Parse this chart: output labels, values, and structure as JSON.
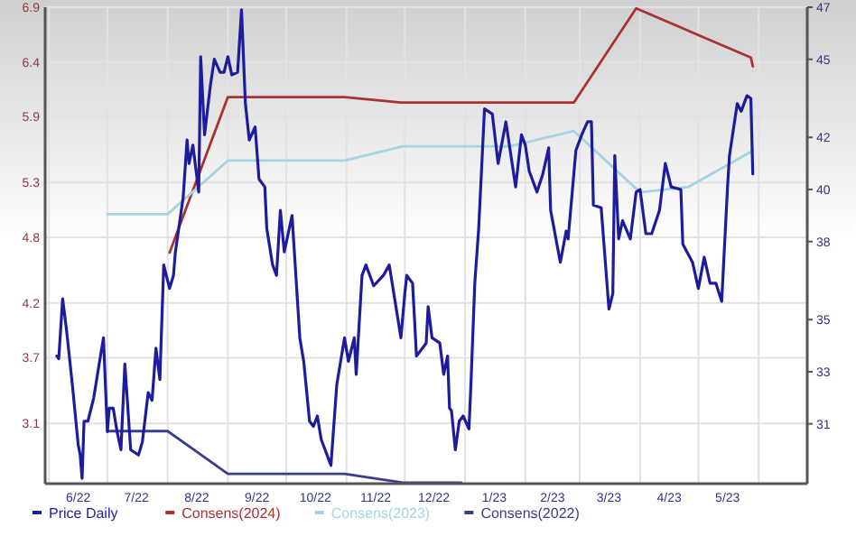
{
  "chart_data": {
    "type": "line",
    "xlim": [
      "2022-05-30",
      "2023-06-26"
    ],
    "xticks": [
      {
        "value": "2022-06-01",
        "label": null
      },
      {
        "value": "2022-06-16",
        "label": "6/22"
      },
      {
        "value": "2022-07-01",
        "label": null
      },
      {
        "value": "2022-07-16",
        "label": "7/22"
      },
      {
        "value": "2022-08-01",
        "label": null
      },
      {
        "value": "2022-08-16",
        "label": "8/22"
      },
      {
        "value": "2022-09-01",
        "label": null
      },
      {
        "value": "2022-09-16",
        "label": "9/22"
      },
      {
        "value": "2022-10-01",
        "label": null
      },
      {
        "value": "2022-10-16",
        "label": "10/22"
      },
      {
        "value": "2022-11-01",
        "label": null
      },
      {
        "value": "2022-11-16",
        "label": "11/22"
      },
      {
        "value": "2022-12-01",
        "label": null
      },
      {
        "value": "2022-12-16",
        "label": "12/22"
      },
      {
        "value": "2023-01-01",
        "label": null
      },
      {
        "value": "2023-01-16",
        "label": "1/23"
      },
      {
        "value": "2023-02-01",
        "label": null
      },
      {
        "value": "2023-02-15",
        "label": "2/23"
      },
      {
        "value": "2023-03-01",
        "label": null
      },
      {
        "value": "2023-03-16",
        "label": "3/23"
      },
      {
        "value": "2023-04-01",
        "label": null
      },
      {
        "value": "2023-04-16",
        "label": "4/23"
      },
      {
        "value": "2023-05-01",
        "label": null
      },
      {
        "value": "2023-05-16",
        "label": "5/23"
      },
      {
        "value": "2023-06-01",
        "label": null
      }
    ],
    "ylim": [
      2.55,
      6.9
    ],
    "yticks": [
      3.1,
      3.7,
      4.2,
      4.8,
      5.3,
      5.9,
      6.4,
      6.9
    ],
    "y2lim": [
      28.7,
      47
    ],
    "y2ticks": [
      31,
      33,
      35,
      38,
      40,
      42,
      45,
      47
    ],
    "grid": true,
    "legend": "bottom",
    "marker": "none",
    "line_style": "solid",
    "series": [
      {
        "name": "Price Daily",
        "color": "#1c1c9c",
        "axis": "y2",
        "x": [
          "2022-06-05",
          "2022-06-06",
          "2022-06-08",
          "2022-06-10",
          "2022-06-13",
          "2022-06-16",
          "2022-06-17",
          "2022-06-18",
          "2022-06-19",
          "2022-06-21",
          "2022-06-24",
          "2022-06-27",
          "2022-06-29",
          "2022-07-01",
          "2022-07-02",
          "2022-07-04",
          "2022-07-06",
          "2022-07-08",
          "2022-07-10",
          "2022-07-12",
          "2022-07-13",
          "2022-07-17",
          "2022-07-19",
          "2022-07-22",
          "2022-07-24",
          "2022-07-26",
          "2022-07-28",
          "2022-07-30",
          "2022-08-02",
          "2022-08-04",
          "2022-08-05",
          "2022-08-09",
          "2022-08-11",
          "2022-08-12",
          "2022-08-14",
          "2022-08-17",
          "2022-08-18",
          "2022-08-20",
          "2022-08-23",
          "2022-08-25",
          "2022-08-28",
          "2022-08-30",
          "2022-09-01",
          "2022-09-03",
          "2022-09-06",
          "2022-09-08",
          "2022-09-10",
          "2022-09-12",
          "2022-09-15",
          "2022-09-17",
          "2022-09-20",
          "2022-09-21",
          "2022-09-24",
          "2022-09-26",
          "2022-09-28",
          "2022-09-30",
          "2022-10-04",
          "2022-10-08",
          "2022-10-10",
          "2022-10-13",
          "2022-10-15",
          "2022-10-17",
          "2022-10-19",
          "2022-10-24",
          "2022-10-27",
          "2022-10-31",
          "2022-11-02",
          "2022-11-05",
          "2022-11-06",
          "2022-11-09",
          "2022-11-11",
          "2022-11-15",
          "2022-11-20",
          "2022-11-23",
          "2022-11-26",
          "2022-11-29",
          "2022-12-01",
          "2022-12-02",
          "2022-12-05",
          "2022-12-07",
          "2022-12-12",
          "2022-12-13",
          "2022-12-15",
          "2022-12-19",
          "2022-12-21",
          "2022-12-23",
          "2022-12-24",
          "2022-12-25",
          "2022-12-27",
          "2022-12-29",
          "2022-12-31",
          "2023-01-03",
          "2023-01-04",
          "2023-01-06",
          "2023-01-08",
          "2023-01-11",
          "2023-01-15",
          "2023-01-18",
          "2023-01-22",
          "2023-01-26",
          "2023-01-27",
          "2023-01-30",
          "2023-02-01",
          "2023-02-03",
          "2023-02-07",
          "2023-02-10",
          "2023-02-13",
          "2023-02-14",
          "2023-02-19",
          "2023-02-22",
          "2023-02-23",
          "2023-02-27",
          "2023-03-02",
          "2023-03-05",
          "2023-03-07",
          "2023-03-08",
          "2023-03-12",
          "2023-03-16",
          "2023-03-18",
          "2023-03-19",
          "2023-03-21",
          "2023-03-23",
          "2023-03-27",
          "2023-03-30",
          "2023-04-01",
          "2023-04-04",
          "2023-04-07",
          "2023-04-11",
          "2023-04-14",
          "2023-04-17",
          "2023-04-22",
          "2023-04-23",
          "2023-04-28",
          "2023-05-01",
          "2023-05-04",
          "2023-05-07",
          "2023-05-10",
          "2023-05-13",
          "2023-05-16",
          "2023-05-17",
          "2023-05-21",
          "2023-05-23",
          "2023-05-26",
          "2023-05-28",
          "2023-05-29"
        ],
        "values": [
          33.6,
          33.5,
          35.8,
          34.6,
          32.5,
          30.2,
          29.8,
          28.9,
          31.1,
          31.1,
          32.0,
          33.4,
          34.3,
          30.7,
          31.6,
          31.6,
          30.7,
          30.0,
          33.3,
          31.1,
          30.0,
          29.8,
          30.3,
          32.2,
          31.9,
          33.9,
          32.7,
          37.1,
          36.2,
          36.7,
          37.6,
          39.7,
          41.9,
          41.0,
          41.7,
          39.9,
          45.1,
          42.1,
          44.0,
          45.0,
          44.5,
          44.5,
          45.1,
          44.4,
          44.5,
          46.9,
          43.3,
          41.9,
          42.4,
          40.4,
          40.1,
          38.5,
          37.1,
          36.7,
          39.2,
          37.6,
          39.0,
          34.3,
          33.4,
          31.1,
          30.9,
          31.3,
          30.4,
          29.4,
          32.5,
          34.3,
          33.4,
          34.3,
          32.9,
          36.7,
          37.1,
          36.3,
          36.7,
          37.1,
          35.7,
          34.3,
          36.0,
          36.7,
          36.4,
          33.6,
          34.1,
          35.5,
          34.3,
          34.1,
          32.9,
          33.6,
          31.6,
          31.5,
          30.0,
          31.1,
          31.3,
          30.8,
          32.5,
          36.4,
          38.5,
          43.1,
          42.9,
          41.0,
          42.6,
          40.6,
          40.1,
          42.1,
          41.7,
          40.7,
          39.9,
          40.6,
          41.6,
          39.2,
          37.2,
          38.4,
          38.1,
          41.5,
          42.1,
          42.6,
          42.6,
          39.4,
          39.3,
          35.4,
          36.0,
          41.3,
          38.1,
          38.8,
          38.1,
          39.9,
          40.0,
          38.3,
          38.3,
          39.2,
          41.0,
          40.1,
          40.0,
          37.9,
          37.2,
          36.2,
          37.4,
          36.4,
          36.4,
          35.7,
          40.1,
          41.3,
          43.3,
          43.0,
          43.6,
          43.5,
          40.6
        ]
      },
      {
        "name": "Consens(2024)",
        "color": "#a83232",
        "x": [
          "2022-08-02",
          "2022-09-01",
          "2022-10-31",
          "2022-11-29",
          "2023-02-26",
          "2023-03-30",
          "2023-05-28",
          "2023-05-29"
        ],
        "values": [
          4.66,
          6.08,
          6.08,
          6.03,
          6.03,
          6.89,
          6.44,
          6.36
        ]
      },
      {
        "name": "Consens(2023)",
        "color": "#a6d3e4",
        "x": [
          "2022-07-01",
          "2022-08-01",
          "2022-09-01",
          "2022-10-31",
          "2022-11-30",
          "2023-01-24",
          "2023-02-26",
          "2023-04-01",
          "2023-04-26",
          "2023-05-29"
        ],
        "values": [
          5.01,
          5.01,
          5.5,
          5.5,
          5.63,
          5.63,
          5.77,
          5.21,
          5.26,
          5.59
        ]
      },
      {
        "name": "Consens(2022)",
        "color": "#3c3c8c",
        "x": [
          "2022-07-01",
          "2022-08-01",
          "2022-09-01",
          "2022-10-31",
          "2022-11-30",
          "2022-12-30"
        ],
        "values": [
          3.03,
          3.03,
          2.64,
          2.64,
          2.56,
          2.56
        ]
      }
    ]
  }
}
